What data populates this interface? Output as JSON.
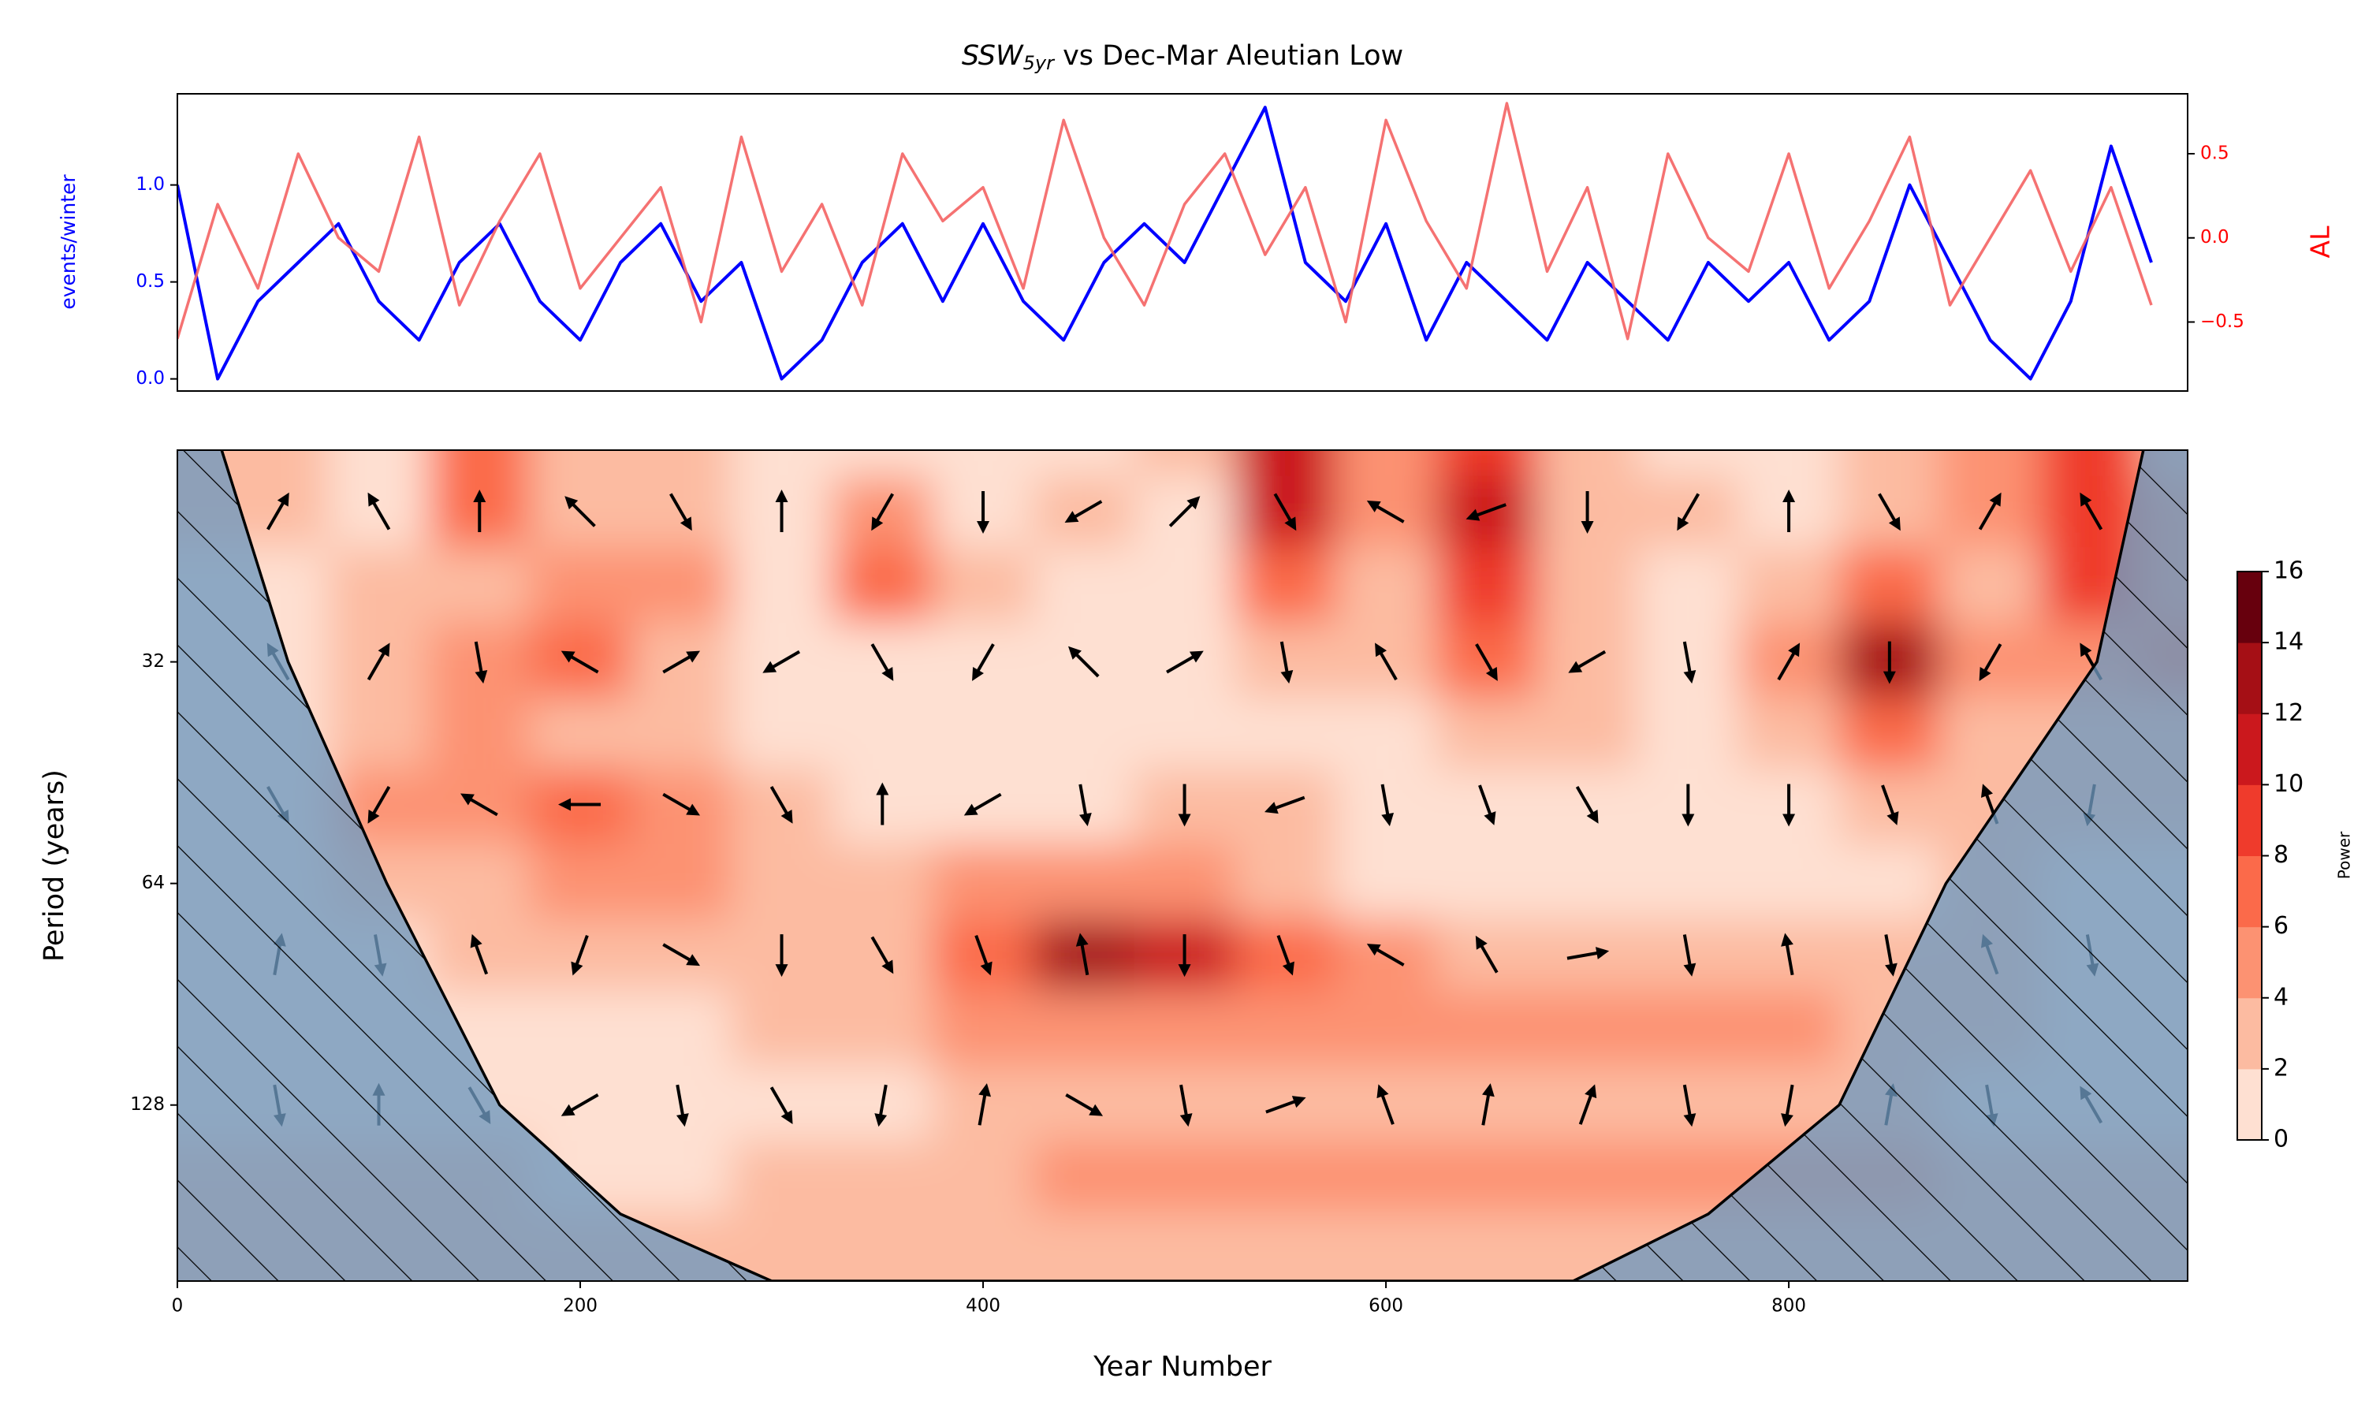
{
  "chart_data": [
    {
      "type": "line",
      "title_main": "SSW",
      "title_sub": "5yr",
      "title_rest": " vs Dec-Mar Aleutian Low",
      "ylabel": "events/winter",
      "y2label": "AL",
      "x": [
        0,
        20,
        40,
        60,
        80,
        100,
        120,
        140,
        160,
        180,
        200,
        220,
        240,
        260,
        280,
        300,
        320,
        340,
        360,
        380,
        400,
        420,
        440,
        460,
        480,
        500,
        520,
        540,
        560,
        580,
        600,
        620,
        640,
        660,
        680,
        700,
        720,
        740,
        760,
        780,
        800,
        820,
        840,
        860,
        880,
        900,
        920,
        940,
        960,
        980
      ],
      "series": [
        {
          "color": "#0000ff",
          "values": [
            1.0,
            0.0,
            0.4,
            0.6,
            0.8,
            0.4,
            0.2,
            0.6,
            0.8,
            0.4,
            0.2,
            0.6,
            0.8,
            0.4,
            0.6,
            0.0,
            0.2,
            0.6,
            0.8,
            0.4,
            0.8,
            0.4,
            0.2,
            0.6,
            0.8,
            0.6,
            1.0,
            1.4,
            0.6,
            0.4,
            0.8,
            0.2,
            0.6,
            0.4,
            0.2,
            0.6,
            0.4,
            0.2,
            0.6,
            0.4,
            0.6,
            0.2,
            0.4,
            1.0,
            0.6,
            0.2,
            0.0,
            0.4,
            1.2,
            0.6
          ]
        },
        {
          "color": "#f46363",
          "axis": "y2",
          "values": [
            -0.6,
            0.2,
            -0.3,
            0.5,
            0.0,
            -0.2,
            0.6,
            -0.4,
            0.1,
            0.5,
            -0.3,
            0.0,
            0.3,
            -0.5,
            0.6,
            -0.2,
            0.2,
            -0.4,
            0.5,
            0.1,
            0.3,
            -0.3,
            0.7,
            0.0,
            -0.4,
            0.2,
            0.5,
            -0.1,
            0.3,
            -0.5,
            0.7,
            0.1,
            -0.3,
            0.8,
            -0.2,
            0.3,
            -0.6,
            0.5,
            0.0,
            -0.2,
            0.5,
            -0.3,
            0.1,
            0.6,
            -0.4,
            0.0,
            0.4,
            -0.2,
            0.3,
            -0.4
          ]
        }
      ],
      "xlim": [
        0,
        998
      ],
      "ylim": [
        -0.0625,
        1.47
      ],
      "yticks": [
        {
          "value": 0,
          "label": "0.0"
        },
        {
          "value": 0.5,
          "label": "0.5"
        },
        {
          "value": 1,
          "label": "1.0"
        }
      ],
      "y2lim": [
        -0.91,
        0.856
      ],
      "y2ticks": [
        {
          "value": -0.5,
          "label": "−0.5"
        },
        {
          "value": 0,
          "label": "0.0"
        },
        {
          "value": 0.5,
          "label": "0.5"
        }
      ]
    },
    {
      "type": "wavelet",
      "xlabel": "Year Number",
      "ylabel": "Period (years)",
      "xlim": [
        0,
        998
      ],
      "xticks": [
        0,
        200,
        400,
        600,
        800
      ],
      "ylim": [
        16.5,
        222
      ],
      "yscale": "log2",
      "yinvert": true,
      "yticks": [
        32,
        64,
        128
      ],
      "x": [
        0,
        50,
        100,
        150,
        200,
        250,
        300,
        350,
        400,
        450,
        500,
        550,
        600,
        650,
        700,
        750,
        800,
        850,
        900,
        950,
        1000
      ],
      "periods": [
        16,
        20,
        25,
        32,
        40,
        50,
        64,
        80,
        100,
        128,
        160,
        200
      ],
      "power": [
        [
          3,
          3,
          2,
          8,
          3,
          3,
          2,
          1,
          1,
          2,
          3,
          11,
          5,
          10,
          3,
          2,
          2,
          3,
          5,
          9,
          4
        ],
        [
          3,
          3,
          2,
          7,
          3,
          4,
          2,
          6,
          2,
          3,
          2,
          12,
          5,
          11,
          3,
          3,
          2,
          3,
          5,
          10,
          5
        ],
        [
          2,
          2,
          3,
          4,
          5,
          6,
          2,
          7,
          3,
          2,
          2,
          8,
          4,
          10,
          4,
          2,
          4,
          8,
          4,
          9,
          6
        ],
        [
          2,
          2,
          4,
          6,
          7,
          4,
          2,
          2,
          2,
          2,
          2,
          3,
          3,
          7,
          4,
          2,
          6,
          14,
          6,
          5,
          8
        ],
        [
          1,
          2,
          4,
          5,
          4,
          3,
          2,
          2,
          2,
          1,
          2,
          2,
          2,
          4,
          3,
          2,
          3,
          8,
          3,
          3,
          4
        ],
        [
          1,
          2,
          5,
          6,
          7,
          5,
          3,
          2,
          2,
          2,
          3,
          3,
          2,
          2,
          2,
          2,
          2,
          3,
          3,
          3,
          3
        ],
        [
          1,
          2,
          3,
          4,
          6,
          6,
          4,
          3,
          5,
          6,
          5,
          4,
          2,
          2,
          2,
          2,
          2,
          2,
          3,
          2,
          2
        ],
        [
          1,
          1,
          2,
          3,
          3,
          3,
          4,
          4,
          7,
          14,
          12,
          7,
          5,
          4,
          3,
          3,
          3,
          3,
          3,
          2,
          2
        ],
        [
          1,
          1,
          2,
          2,
          2,
          2,
          3,
          3,
          5,
          6,
          6,
          6,
          6,
          5,
          6,
          6,
          5,
          4,
          3,
          2,
          2
        ],
        [
          2,
          2,
          2,
          2,
          2,
          2,
          2,
          2,
          3,
          4,
          4,
          4,
          3,
          4,
          4,
          4,
          4,
          3,
          2,
          2,
          2
        ],
        [
          3,
          3,
          3,
          3,
          2,
          2,
          3,
          3,
          4,
          5,
          6,
          6,
          5,
          6,
          6,
          6,
          6,
          5,
          4,
          3,
          3
        ],
        [
          3,
          3,
          3,
          3,
          3,
          3,
          3,
          3,
          3,
          3,
          4,
          4,
          3,
          3,
          3,
          3,
          3,
          3,
          3,
          3,
          3
        ]
      ],
      "arrow_x": [
        50,
        100,
        150,
        200,
        250,
        300,
        350,
        400,
        450,
        500,
        550,
        600,
        650,
        700,
        750,
        800,
        850,
        900,
        950
      ],
      "arrow_periods": [
        20,
        32,
        50,
        80,
        128
      ],
      "phase": [
        [
          60,
          120,
          90,
          135,
          300,
          90,
          240,
          270,
          210,
          45,
          300,
          150,
          200,
          270,
          240,
          90,
          300,
          60,
          120
        ],
        [
          120,
          60,
          280,
          150,
          30,
          210,
          300,
          240,
          135,
          30,
          280,
          120,
          300,
          210,
          280,
          60,
          270,
          240,
          120
        ],
        [
          300,
          240,
          150,
          180,
          330,
          300,
          90,
          210,
          280,
          270,
          200,
          280,
          290,
          300,
          270,
          270,
          290,
          110,
          260
        ],
        [
          80,
          280,
          110,
          250,
          330,
          270,
          300,
          290,
          100,
          270,
          290,
          150,
          120,
          10,
          280,
          100,
          280,
          110,
          280
        ],
        [
          280,
          90,
          300,
          210,
          280,
          300,
          260,
          80,
          330,
          280,
          20,
          110,
          80,
          70,
          280,
          260,
          80,
          280,
          120
        ]
      ],
      "coi_x": [
        22,
        55,
        104,
        160,
        220,
        295,
        693,
        760,
        825,
        878,
        953,
        976
      ],
      "coi_period": [
        16.5,
        32,
        64,
        128,
        180,
        222,
        222,
        180,
        128,
        64,
        32,
        16.5
      ],
      "colorbar": {
        "label": "Power",
        "lim": [
          0,
          16
        ],
        "ticks": [
          0,
          2,
          4,
          6,
          8,
          10,
          12,
          14,
          16
        ]
      }
    }
  ]
}
